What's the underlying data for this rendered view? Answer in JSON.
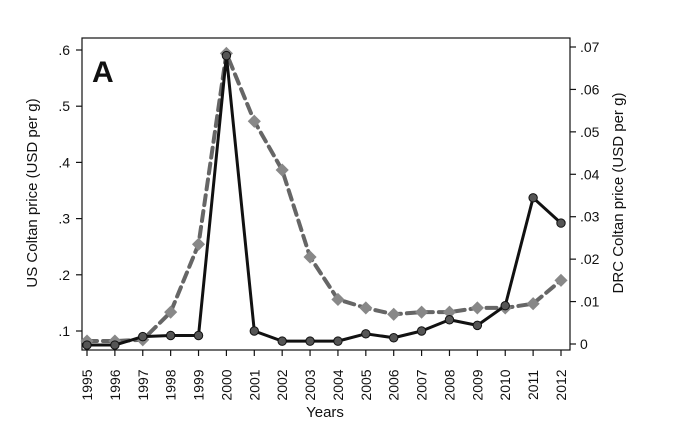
{
  "chart_data": {
    "type": "line",
    "panel_label": "A",
    "title": "",
    "xlabel": "Years",
    "ylabel_left": "US Coltan price (USD per g)",
    "ylabel_right": "DRC Coltan price (USD per g)",
    "x": [
      1995,
      1996,
      1997,
      1998,
      1999,
      2000,
      2001,
      2002,
      2003,
      2004,
      2005,
      2006,
      2007,
      2008,
      2009,
      2010,
      2011,
      2012
    ],
    "x_tick_labels": [
      "1995",
      "1996",
      "1997",
      "1998",
      "1999",
      "2000",
      "2001",
      "2002",
      "2003",
      "2004",
      "2005",
      "2006",
      "2007",
      "2008",
      "2009",
      "2010",
      "2011",
      "2012"
    ],
    "y_left_ticks": [
      0.1,
      0.2,
      0.3,
      0.4,
      0.5,
      0.6
    ],
    "y_left_tick_labels": [
      ".1",
      ".2",
      ".3",
      ".4",
      ".5",
      ".6"
    ],
    "y_right_ticks": [
      0,
      0.01,
      0.02,
      0.03,
      0.04,
      0.05,
      0.06,
      0.07
    ],
    "y_right_tick_labels": [
      "0",
      ".01",
      ".02",
      ".03",
      ".04",
      ".05",
      ".06",
      ".07"
    ],
    "ylim_left": [
      0.07,
      0.6
    ],
    "ylim_right": [
      -0.0035,
      0.07
    ],
    "grid": false,
    "legend": "none",
    "series": [
      {
        "axis": "left",
        "style": "solid",
        "marker": "circle",
        "color": "#111111",
        "marker_color": "#555555",
        "values": [
          0.075,
          0.075,
          0.09,
          0.092,
          0.092,
          0.59,
          0.1,
          0.082,
          0.082,
          0.082,
          0.095,
          0.088,
          0.1,
          0.12,
          0.11,
          0.145,
          0.337,
          0.292
        ]
      },
      {
        "axis": "right",
        "style": "dashed",
        "marker": "diamond",
        "color": "#666666",
        "marker_color": "#888888",
        "values": [
          0.0007,
          0.0007,
          0.001,
          0.0075,
          0.0235,
          0.0685,
          0.0525,
          0.041,
          0.0205,
          0.0105,
          0.0085,
          0.007,
          0.0075,
          0.0075,
          0.0085,
          0.0085,
          0.0095,
          0.015
        ]
      }
    ]
  }
}
